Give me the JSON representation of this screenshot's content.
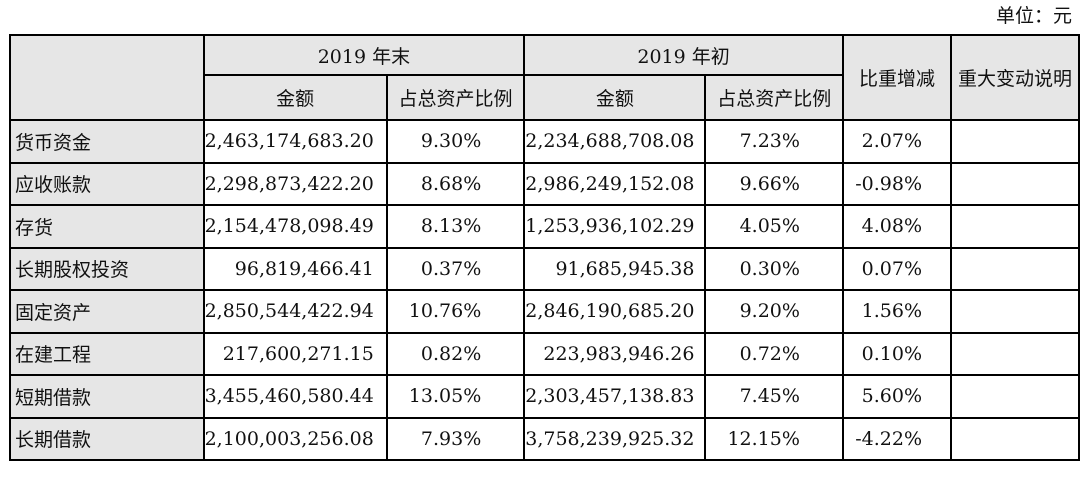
{
  "unit_label": "单位：元",
  "header": {
    "row_header": "",
    "year_end_group": "2019 年末",
    "year_begin_group": "2019 年初",
    "amount": "金额",
    "ratio": "占总资产比例",
    "change": "比重增减",
    "explanation": "重大变动说明"
  },
  "rows": [
    {
      "name": "货币资金",
      "end_amount": "2,463,174,683.20",
      "end_ratio": "9.30%",
      "begin_amount": "2,234,688,708.08",
      "begin_ratio": "7.23%",
      "change": "2.07%",
      "note": ""
    },
    {
      "name": "应收账款",
      "end_amount": "2,298,873,422.20",
      "end_ratio": "8.68%",
      "begin_amount": "2,986,249,152.08",
      "begin_ratio": "9.66%",
      "change": "-0.98%",
      "note": ""
    },
    {
      "name": "存货",
      "end_amount": "2,154,478,098.49",
      "end_ratio": "8.13%",
      "begin_amount": "1,253,936,102.29",
      "begin_ratio": "4.05%",
      "change": "4.08%",
      "note": ""
    },
    {
      "name": "长期股权投资",
      "end_amount": "96,819,466.41",
      "end_ratio": "0.37%",
      "begin_amount": "91,685,945.38",
      "begin_ratio": "0.30%",
      "change": "0.07%",
      "note": ""
    },
    {
      "name": "固定资产",
      "end_amount": "2,850,544,422.94",
      "end_ratio": "10.76%",
      "begin_amount": "2,846,190,685.20",
      "begin_ratio": "9.20%",
      "change": "1.56%",
      "note": ""
    },
    {
      "name": "在建工程",
      "end_amount": "217,600,271.15",
      "end_ratio": "0.82%",
      "begin_amount": "223,983,946.26",
      "begin_ratio": "0.72%",
      "change": "0.10%",
      "note": ""
    },
    {
      "name": "短期借款",
      "end_amount": "3,455,460,580.44",
      "end_ratio": "13.05%",
      "begin_amount": "2,303,457,138.83",
      "begin_ratio": "7.45%",
      "change": "5.60%",
      "note": ""
    },
    {
      "name": "长期借款",
      "end_amount": "2,100,003,256.08",
      "end_ratio": "7.93%",
      "begin_amount": "3,758,239,925.32",
      "begin_ratio": "12.15%",
      "change": "-4.22%",
      "note": ""
    }
  ]
}
